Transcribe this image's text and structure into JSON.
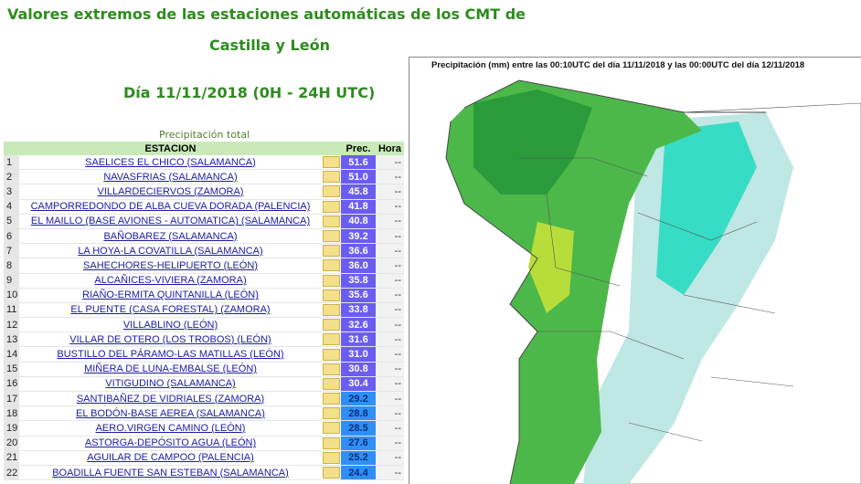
{
  "header": {
    "line1": "Valores extremos de las estaciones automáticas de los CMT de",
    "line2": "Castilla y León",
    "line3": "Día 11/11/2018 (0H - 24H UTC)"
  },
  "table": {
    "caption": "Precipitación total",
    "col_station": "ESTACION",
    "col_prec": "Prec.",
    "col_hora": "Hora",
    "colors": {
      "purple": "#6b5cf2",
      "blue": "#2f8ff5"
    },
    "rows": [
      {
        "n": "1",
        "station": "SAELICES EL CHICO (SALAMANCA)",
        "prec": "51.6",
        "hora": "--"
      },
      {
        "n": "2",
        "station": "NAVASFRIAS (SALAMANCA)",
        "prec": "51.0",
        "hora": "--"
      },
      {
        "n": "3",
        "station": "VILLARDECIERVOS (ZAMORA)",
        "prec": "45.8",
        "hora": "--"
      },
      {
        "n": "4",
        "station": "CAMPORREDONDO DE ALBA CUEVA DORADA (PALENCIA)",
        "prec": "41.8",
        "hora": "--"
      },
      {
        "n": "5",
        "station": "EL MAILLO (BASE AVIONES - AUTOMATICA) (SALAMANCA)",
        "prec": "40.8",
        "hora": "--"
      },
      {
        "n": "6",
        "station": "BAÑOBAREZ (SALAMANCA)",
        "prec": "39.2",
        "hora": "--"
      },
      {
        "n": "7",
        "station": "LA HOYA-LA COVATILLA (SALAMANCA)",
        "prec": "36.6",
        "hora": "--"
      },
      {
        "n": "8",
        "station": "SAHECHORES-HELIPUERTO (LEÓN)",
        "prec": "36.0",
        "hora": "--"
      },
      {
        "n": "9",
        "station": "ALCAÑICES-VIVIERA (ZAMORA)",
        "prec": "35.8",
        "hora": "--"
      },
      {
        "n": "10",
        "station": "RIAÑO-ERMITA QUINTANILLA (LEÓN)",
        "prec": "35.6",
        "hora": "--"
      },
      {
        "n": "11",
        "station": "EL PUENTE (CASA FORESTAL) (ZAMORA)",
        "prec": "33.8",
        "hora": "--"
      },
      {
        "n": "12",
        "station": "VILLABLINO (LEÓN)",
        "prec": "32.6",
        "hora": "--"
      },
      {
        "n": "13",
        "station": "VILLAR DE OTERO (LOS TROBOS) (LEÓN)",
        "prec": "31.6",
        "hora": "--"
      },
      {
        "n": "14",
        "station": "BUSTILLO DEL PÁRAMO-LAS MATILLAS (LEÓN)",
        "prec": "31.0",
        "hora": "--"
      },
      {
        "n": "15",
        "station": "MIÑERA DE LUNA-EMBALSE (LEÓN)",
        "prec": "30.8",
        "hora": "--"
      },
      {
        "n": "16",
        "station": "VITIGUDINO (SALAMANCA)",
        "prec": "30.4",
        "hora": "--"
      },
      {
        "n": "17",
        "station": "SANTIBAÑEZ DE VIDRIALES (ZAMORA)",
        "prec": "29.2",
        "hora": "--"
      },
      {
        "n": "18",
        "station": "EL BODÓN-BASE AEREA (SALAMANCA)",
        "prec": "28.8",
        "hora": "--"
      },
      {
        "n": "19",
        "station": "AERO.VIRGEN CAMINO (LEÓN)",
        "prec": "28.5",
        "hora": "--"
      },
      {
        "n": "20",
        "station": "ASTORGA-DEPÓSITO AGUA (LEÓN)",
        "prec": "27.6",
        "hora": "--"
      },
      {
        "n": "21",
        "station": "AGUILAR DE CAMPOO (PALENCIA)",
        "prec": "25.2",
        "hora": "--"
      },
      {
        "n": "22",
        "station": "BOADILLA FUENTE SAN ESTEBAN (SALAMANCA)",
        "prec": "24.4",
        "hora": "--"
      }
    ]
  },
  "map": {
    "title": "Precipitación (mm) entre las 00:10UTC del día 11/11/2018 y las 00:00UTC del día 12/11/2018"
  }
}
